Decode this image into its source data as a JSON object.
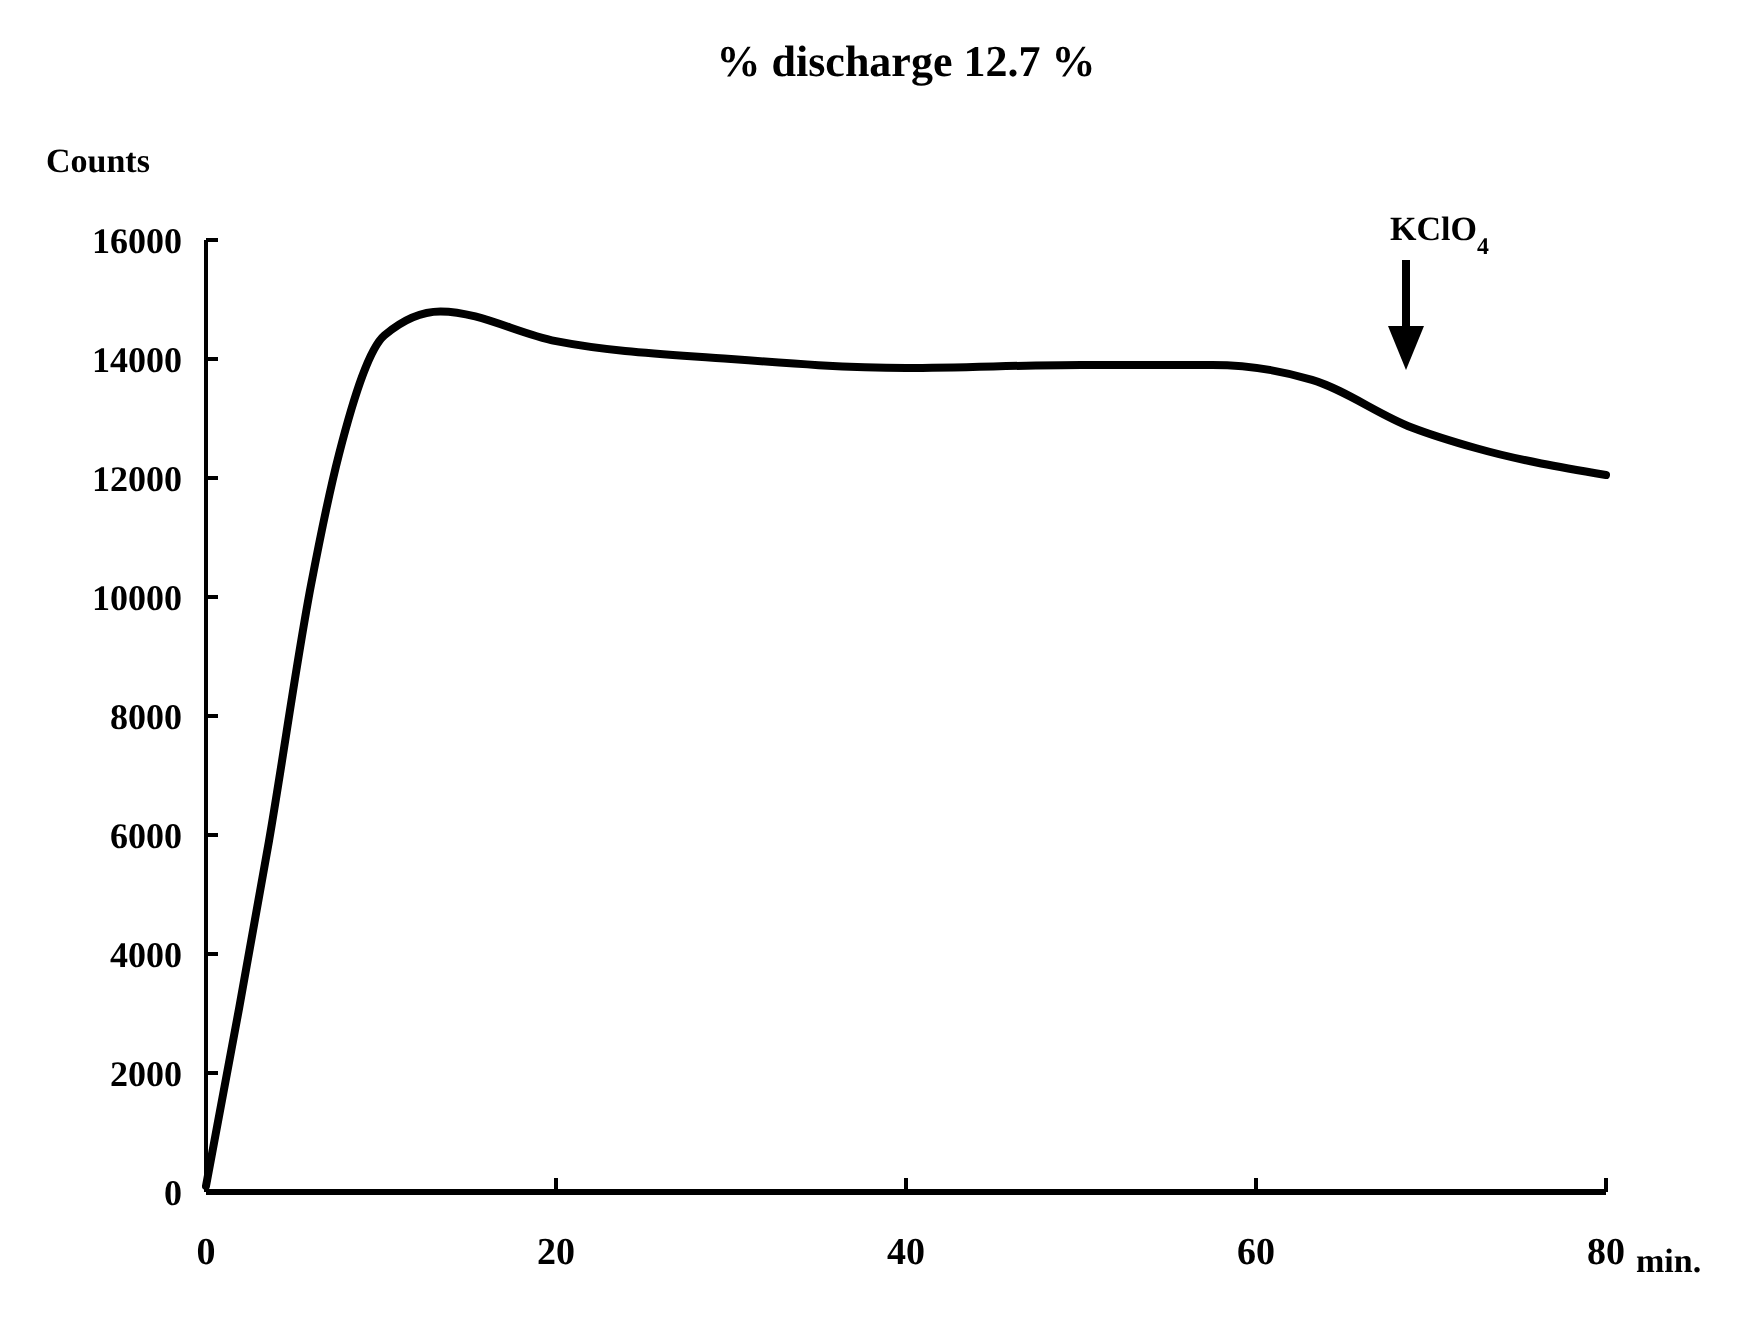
{
  "chart_data": {
    "type": "line",
    "title": "% discharge 12.7 %",
    "xlabel": "min.",
    "ylabel": "Counts",
    "x": [
      0,
      1.9,
      3.6,
      6,
      7.6,
      10.2,
      13.4,
      20,
      30,
      40,
      50,
      57.5,
      63.2,
      68.9,
      72.6,
      80
    ],
    "series": [
      {
        "color": "#000000",
        "values": [
          100,
          3100,
          5900,
          10200,
          12400,
          14400,
          14800,
          14300,
          14000,
          13850,
          13900,
          13900,
          13650,
          12850,
          12500,
          12050
        ]
      }
    ],
    "xlim": [
      0,
      80
    ],
    "xticks": [
      0,
      20,
      40,
      60,
      80
    ],
    "ylim": [
      0,
      16000
    ],
    "yticks": [
      0,
      2000,
      4000,
      6000,
      8000,
      10000,
      12000,
      14000,
      16000
    ],
    "grid": false,
    "marker": "none",
    "line_style": "solid",
    "annotations": [
      "KClO$_{4}$"
    ]
  }
}
